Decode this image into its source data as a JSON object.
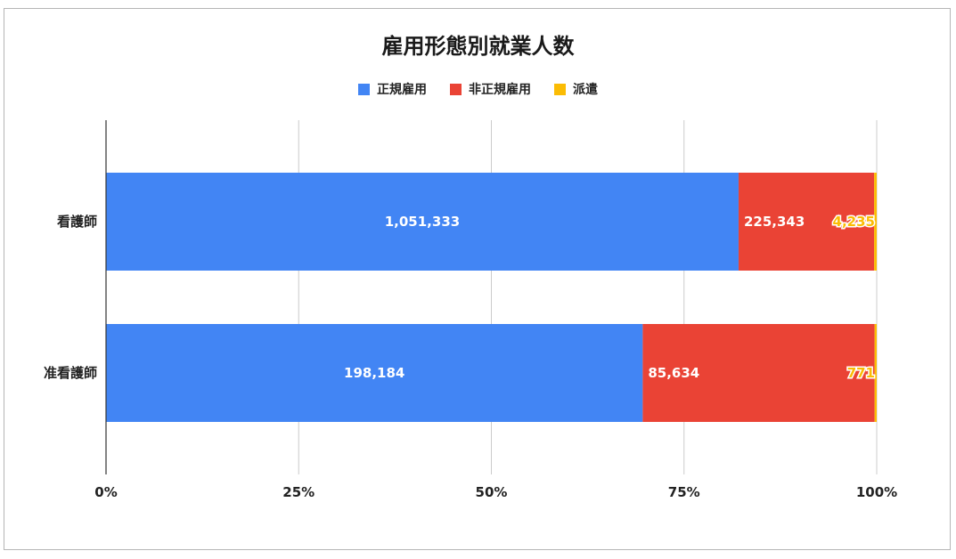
{
  "chart_data": {
    "type": "bar",
    "orientation": "horizontal",
    "stacked": "percent",
    "title": "雇用形態別就業人数",
    "categories": [
      "看護師",
      "准看護師"
    ],
    "series": [
      {
        "name": "正規雇用",
        "color": "#4285f4",
        "values": [
          1051333,
          198184
        ],
        "labels": [
          "1,051,333",
          "198,184"
        ]
      },
      {
        "name": "非正規雇用",
        "color": "#ea4335",
        "values": [
          225343,
          85634
        ],
        "labels": [
          "225,343",
          "85,634"
        ]
      },
      {
        "name": "派遣",
        "color": "#fbbc04",
        "values": [
          4235,
          771
        ],
        "labels": [
          "4,235",
          "771"
        ]
      }
    ],
    "x_ticks": [
      "0%",
      "25%",
      "50%",
      "75%",
      "100%"
    ],
    "xlim": [
      0,
      100
    ],
    "grid": true,
    "legend_position": "top"
  }
}
